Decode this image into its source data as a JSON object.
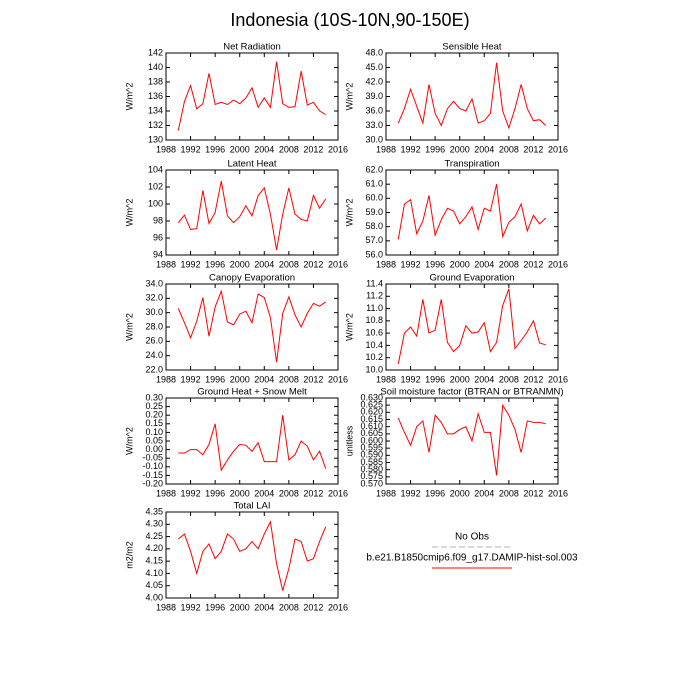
{
  "title": "Indonesia (10S-10N,90-150E)",
  "legend": [
    {
      "name": "No Obs",
      "color": "#a8b0d0",
      "dashed": true
    },
    {
      "name": "b.e21.B1850cmip6.f09_g17.DAMIP-hist-sol.003",
      "color": "#ff0000",
      "dashed": false
    }
  ],
  "chart_data": [
    {
      "type": "line",
      "title": "Net Radiation",
      "ylabel": "W/m^2",
      "color": "#ff0000",
      "x": [
        1990,
        1991,
        1992,
        1993,
        1994,
        1995,
        1996,
        1997,
        1998,
        1999,
        2000,
        2001,
        2002,
        2003,
        2004,
        2005,
        2006,
        2007,
        2008,
        2009,
        2010,
        2011,
        2012,
        2013,
        2014
      ],
      "values": [
        131.3,
        135.3,
        137.5,
        134.3,
        135.0,
        139.2,
        134.9,
        135.2,
        134.9,
        135.5,
        135.0,
        135.8,
        137.2,
        134.5,
        135.8,
        134.5,
        140.8,
        135.0,
        134.5,
        134.6,
        139.5,
        134.8,
        135.2,
        134.0,
        133.5
      ],
      "xlim": [
        1988,
        2016
      ],
      "xticks": [
        1988,
        1992,
        1996,
        2000,
        2004,
        2008,
        2012,
        2016
      ],
      "ylim": [
        130,
        142
      ],
      "yticks": [
        130,
        132,
        134,
        136,
        138,
        140,
        142
      ]
    },
    {
      "type": "line",
      "title": "Sensible Heat",
      "ylabel": "W/m^2",
      "color": "#ff0000",
      "x": [
        1990,
        1991,
        1992,
        1993,
        1994,
        1995,
        1996,
        1997,
        1998,
        1999,
        2000,
        2001,
        2002,
        2003,
        2004,
        2005,
        2006,
        2007,
        2008,
        2009,
        2010,
        2011,
        2012,
        2013,
        2014
      ],
      "values": [
        33.5,
        36.5,
        40.5,
        37.0,
        33.5,
        41.5,
        35.5,
        33.0,
        36.5,
        38.0,
        36.5,
        36.0,
        38.5,
        33.5,
        34.0,
        35.5,
        46.0,
        36.0,
        32.5,
        36.5,
        41.5,
        36.5,
        34.0,
        34.2,
        33.0
      ],
      "xlim": [
        1988,
        2016
      ],
      "xticks": [
        1988,
        1992,
        1996,
        2000,
        2004,
        2008,
        2012,
        2016
      ],
      "ylim": [
        30,
        48
      ],
      "yticks": [
        {
          "value": 30,
          "label": "30.0"
        },
        {
          "value": 33,
          "label": "33.0"
        },
        {
          "value": 36,
          "label": "36.0"
        },
        {
          "value": 39,
          "label": "39.0"
        },
        {
          "value": 42,
          "label": "42.0"
        },
        {
          "value": 45,
          "label": "45.0"
        },
        {
          "value": 48,
          "label": "48.0"
        }
      ]
    },
    {
      "type": "line",
      "title": "Latent Heat",
      "ylabel": "W/m^2",
      "color": "#ff0000",
      "x": [
        1990,
        1991,
        1992,
        1993,
        1994,
        1995,
        1996,
        1997,
        1998,
        1999,
        2000,
        2001,
        2002,
        2003,
        2004,
        2005,
        2006,
        2007,
        2008,
        2009,
        2010,
        2011,
        2012,
        2013,
        2014
      ],
      "values": [
        97.8,
        98.7,
        97.0,
        97.1,
        101.6,
        97.7,
        99.0,
        102.7,
        98.6,
        97.8,
        98.5,
        99.8,
        98.6,
        101.0,
        101.9,
        98.8,
        94.6,
        98.8,
        101.9,
        98.8,
        98.2,
        98.0,
        101.0,
        99.5,
        100.6
      ],
      "xlim": [
        1988,
        2016
      ],
      "xticks": [
        1988,
        1992,
        1996,
        2000,
        2004,
        2008,
        2012,
        2016
      ],
      "ylim": [
        94,
        104
      ],
      "yticks": [
        94,
        96,
        98,
        100,
        102,
        104
      ]
    },
    {
      "type": "line",
      "title": "Transpiration",
      "ylabel": "W/m^2",
      "color": "#ff0000",
      "x": [
        1990,
        1991,
        1992,
        1993,
        1994,
        1995,
        1996,
        1997,
        1998,
        1999,
        2000,
        2001,
        2002,
        2003,
        2004,
        2005,
        2006,
        2007,
        2008,
        2009,
        2010,
        2011,
        2012,
        2013,
        2014
      ],
      "values": [
        57.1,
        59.6,
        59.9,
        57.5,
        58.4,
        60.2,
        57.4,
        58.5,
        59.3,
        59.1,
        58.2,
        58.7,
        59.4,
        57.8,
        59.3,
        59.1,
        61.0,
        57.3,
        58.3,
        58.7,
        59.6,
        57.7,
        58.8,
        58.2,
        58.6
      ],
      "xlim": [
        1988,
        2016
      ],
      "xticks": [
        1988,
        1992,
        1996,
        2000,
        2004,
        2008,
        2012,
        2016
      ],
      "ylim": [
        56,
        62
      ],
      "yticks": [
        {
          "value": 56,
          "label": "56.0"
        },
        {
          "value": 57,
          "label": "57.0"
        },
        {
          "value": 58,
          "label": "58.0"
        },
        {
          "value": 59,
          "label": "59.0"
        },
        {
          "value": 60,
          "label": "60.0"
        },
        {
          "value": 61,
          "label": "61.0"
        },
        {
          "value": 62,
          "label": "62.0"
        }
      ]
    },
    {
      "type": "line",
      "title": "Canopy Evaporation",
      "ylabel": "W/m^2",
      "color": "#ff0000",
      "x": [
        1990,
        1991,
        1992,
        1993,
        1994,
        1995,
        1996,
        1997,
        1998,
        1999,
        2000,
        2001,
        2002,
        2003,
        2004,
        2005,
        2006,
        2007,
        2008,
        2009,
        2010,
        2011,
        2012,
        2013,
        2014
      ],
      "values": [
        30.6,
        28.6,
        26.5,
        28.8,
        32.1,
        26.7,
        30.8,
        33.0,
        28.7,
        28.3,
        29.8,
        30.2,
        28.6,
        32.6,
        32.1,
        29.3,
        23.1,
        29.9,
        32.2,
        29.7,
        28.0,
        29.9,
        31.3,
        30.9,
        31.5
      ],
      "xlim": [
        1988,
        2016
      ],
      "xticks": [
        1988,
        1992,
        1996,
        2000,
        2004,
        2008,
        2012,
        2016
      ],
      "ylim": [
        22,
        34
      ],
      "yticks": [
        {
          "value": 22,
          "label": "22.0"
        },
        {
          "value": 24,
          "label": "24.0"
        },
        {
          "value": 26,
          "label": "26.0"
        },
        {
          "value": 28,
          "label": "28.0"
        },
        {
          "value": 30,
          "label": "30.0"
        },
        {
          "value": 32,
          "label": "32.0"
        },
        {
          "value": 34,
          "label": "34.0"
        }
      ]
    },
    {
      "type": "line",
      "title": "Ground Evaporation",
      "ylabel": "W/m^2",
      "color": "#ff0000",
      "x": [
        1990,
        1991,
        1992,
        1993,
        1994,
        1995,
        1996,
        1997,
        1998,
        1999,
        2000,
        2001,
        2002,
        2003,
        2004,
        2005,
        2006,
        2007,
        2008,
        2009,
        2010,
        2011,
        2012,
        2013,
        2014
      ],
      "values": [
        10.1,
        10.6,
        10.7,
        10.55,
        11.15,
        10.6,
        10.65,
        11.15,
        10.45,
        10.3,
        10.4,
        10.72,
        10.6,
        10.62,
        10.77,
        10.3,
        10.45,
        11.05,
        11.32,
        10.35,
        10.48,
        10.62,
        10.8,
        10.44,
        10.41
      ],
      "xlim": [
        1988,
        2016
      ],
      "xticks": [
        1988,
        1992,
        1996,
        2000,
        2004,
        2008,
        2012,
        2016
      ],
      "ylim": [
        10,
        11.4
      ],
      "yticks": [
        {
          "value": 10,
          "label": "10.0"
        },
        10.2,
        10.4,
        10.6,
        10.8,
        {
          "value": 11,
          "label": "11.0"
        },
        11.2,
        11.4
      ]
    },
    {
      "type": "line",
      "title": "Ground Heat + Snow Melt",
      "ylabel": "W/m^2",
      "color": "#ff0000",
      "x": [
        1990,
        1991,
        1992,
        1993,
        1994,
        1995,
        1996,
        1997,
        1998,
        1999,
        2000,
        2001,
        2002,
        2003,
        2004,
        2005,
        2006,
        2007,
        2008,
        2009,
        2010,
        2011,
        2012,
        2013,
        2014
      ],
      "values": [
        -0.02,
        -0.02,
        0.0,
        0.0,
        -0.03,
        0.03,
        0.15,
        -0.12,
        -0.06,
        -0.01,
        0.03,
        0.025,
        -0.01,
        0.04,
        -0.07,
        -0.07,
        -0.07,
        0.2,
        -0.06,
        -0.03,
        0.05,
        0.02,
        -0.06,
        -0.01,
        -0.11
      ],
      "xlim": [
        1988,
        2016
      ],
      "xticks": [
        1988,
        1992,
        1996,
        2000,
        2004,
        2008,
        2012,
        2016
      ],
      "ylim": [
        -0.2,
        0.3
      ],
      "yticks": [
        {
          "value": -0.2,
          "label": "-0.20"
        },
        -0.15,
        {
          "value": -0.1,
          "label": "-0.10"
        },
        -0.05,
        {
          "value": 0,
          "label": "0.00"
        },
        0.05,
        {
          "value": 0.1,
          "label": "0.10"
        },
        0.15,
        {
          "value": 0.2,
          "label": "0.20"
        },
        0.25,
        {
          "value": 0.3,
          "label": "0.30"
        }
      ]
    },
    {
      "type": "line",
      "title": "Soil moisture factor (BTRAN or BTRANMN)",
      "ylabel": "unitless",
      "color": "#ff0000",
      "x": [
        1990,
        1991,
        1992,
        1993,
        1994,
        1995,
        1996,
        1997,
        1998,
        1999,
        2000,
        2001,
        2002,
        2003,
        2004,
        2005,
        2006,
        2007,
        2008,
        2009,
        2010,
        2011,
        2012,
        2013,
        2014
      ],
      "values": [
        0.616,
        0.606,
        0.597,
        0.61,
        0.614,
        0.592,
        0.618,
        0.613,
        0.605,
        0.605,
        0.608,
        0.61,
        0.6,
        0.619,
        0.606,
        0.606,
        0.576,
        0.625,
        0.618,
        0.608,
        0.592,
        0.614,
        0.613,
        0.613,
        0.612
      ],
      "xlim": [
        1988,
        2016
      ],
      "xticks": [
        1988,
        1992,
        1996,
        2000,
        2004,
        2008,
        2012,
        2016
      ],
      "ylim": [
        0.57,
        0.63
      ],
      "yticks": [
        {
          "value": 0.57,
          "label": "0.570"
        },
        0.575,
        {
          "value": 0.58,
          "label": "0.580"
        },
        0.585,
        {
          "value": 0.59,
          "label": "0.590"
        },
        0.595,
        {
          "value": 0.6,
          "label": "0.600"
        },
        0.605,
        {
          "value": 0.61,
          "label": "0.610"
        },
        0.615,
        {
          "value": 0.62,
          "label": "0.620"
        },
        0.625,
        {
          "value": 0.63,
          "label": "0.630"
        }
      ]
    },
    {
      "type": "line",
      "title": "Total LAI",
      "ylabel": "m2/m2",
      "color": "#ff0000",
      "x": [
        1990,
        1991,
        1992,
        1993,
        1994,
        1995,
        1996,
        1997,
        1998,
        1999,
        2000,
        2001,
        2002,
        2003,
        2004,
        2005,
        2006,
        2007,
        2008,
        2009,
        2010,
        2011,
        2012,
        2013,
        2014
      ],
      "values": [
        4.24,
        4.26,
        4.19,
        4.1,
        4.19,
        4.22,
        4.16,
        4.19,
        4.26,
        4.24,
        4.19,
        4.2,
        4.23,
        4.2,
        4.26,
        4.31,
        4.14,
        4.03,
        4.12,
        4.24,
        4.23,
        4.15,
        4.16,
        4.23,
        4.29
      ],
      "xlim": [
        1988,
        2016
      ],
      "xticks": [
        1988,
        1992,
        1996,
        2000,
        2004,
        2008,
        2012,
        2016
      ],
      "ylim": [
        4.0,
        4.35
      ],
      "yticks": [
        {
          "value": 4,
          "label": "4.00"
        },
        4.05,
        {
          "value": 4.1,
          "label": "4.10"
        },
        4.15,
        {
          "value": 4.2,
          "label": "4.20"
        },
        4.25,
        {
          "value": 4.3,
          "label": "4.30"
        },
        4.35
      ]
    }
  ]
}
